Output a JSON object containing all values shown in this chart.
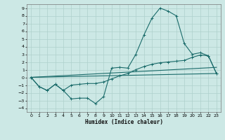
{
  "xlabel": "Humidex (Indice chaleur)",
  "bg_color": "#cce8e5",
  "grid_color": "#aed0cc",
  "line_color": "#1a6b6a",
  "xlim": [
    -0.5,
    23.5
  ],
  "ylim": [
    -4.5,
    9.5
  ],
  "xticks": [
    0,
    1,
    2,
    3,
    4,
    5,
    6,
    7,
    8,
    9,
    10,
    11,
    12,
    13,
    14,
    15,
    16,
    17,
    18,
    19,
    20,
    21,
    22,
    23
  ],
  "yticks": [
    -4,
    -3,
    -2,
    -1,
    0,
    1,
    2,
    3,
    4,
    5,
    6,
    7,
    8,
    9
  ],
  "curve1_x": [
    0,
    1,
    2,
    3,
    4,
    5,
    6,
    7,
    8,
    9,
    10,
    11,
    12,
    13,
    14,
    15,
    16,
    17,
    18,
    19,
    20,
    21,
    22,
    23
  ],
  "curve1_y": [
    0,
    -1.2,
    -1.7,
    -0.9,
    -1.7,
    -2.8,
    -2.7,
    -2.7,
    -3.4,
    -2.5,
    1.2,
    1.3,
    1.2,
    3.0,
    5.5,
    7.7,
    9.0,
    8.6,
    8.0,
    4.4,
    3.0,
    3.2,
    2.8,
    0.5
  ],
  "curve2_x": [
    0,
    1,
    2,
    3,
    4,
    5,
    6,
    7,
    8,
    9,
    10,
    11,
    12,
    13,
    14,
    15,
    16,
    17,
    18,
    19,
    20,
    21,
    22,
    23
  ],
  "curve2_y": [
    0,
    -1.2,
    -1.7,
    -0.9,
    -1.7,
    -1.0,
    -0.9,
    -0.8,
    -0.8,
    -0.6,
    -0.2,
    0.2,
    0.5,
    1.0,
    1.4,
    1.7,
    1.9,
    2.0,
    2.1,
    2.2,
    2.6,
    2.9,
    2.8,
    0.5
  ],
  "line3_x": [
    0,
    23
  ],
  "line3_y": [
    0,
    0.5
  ],
  "line4_x": [
    0,
    23
  ],
  "line4_y": [
    0,
    1.3
  ]
}
